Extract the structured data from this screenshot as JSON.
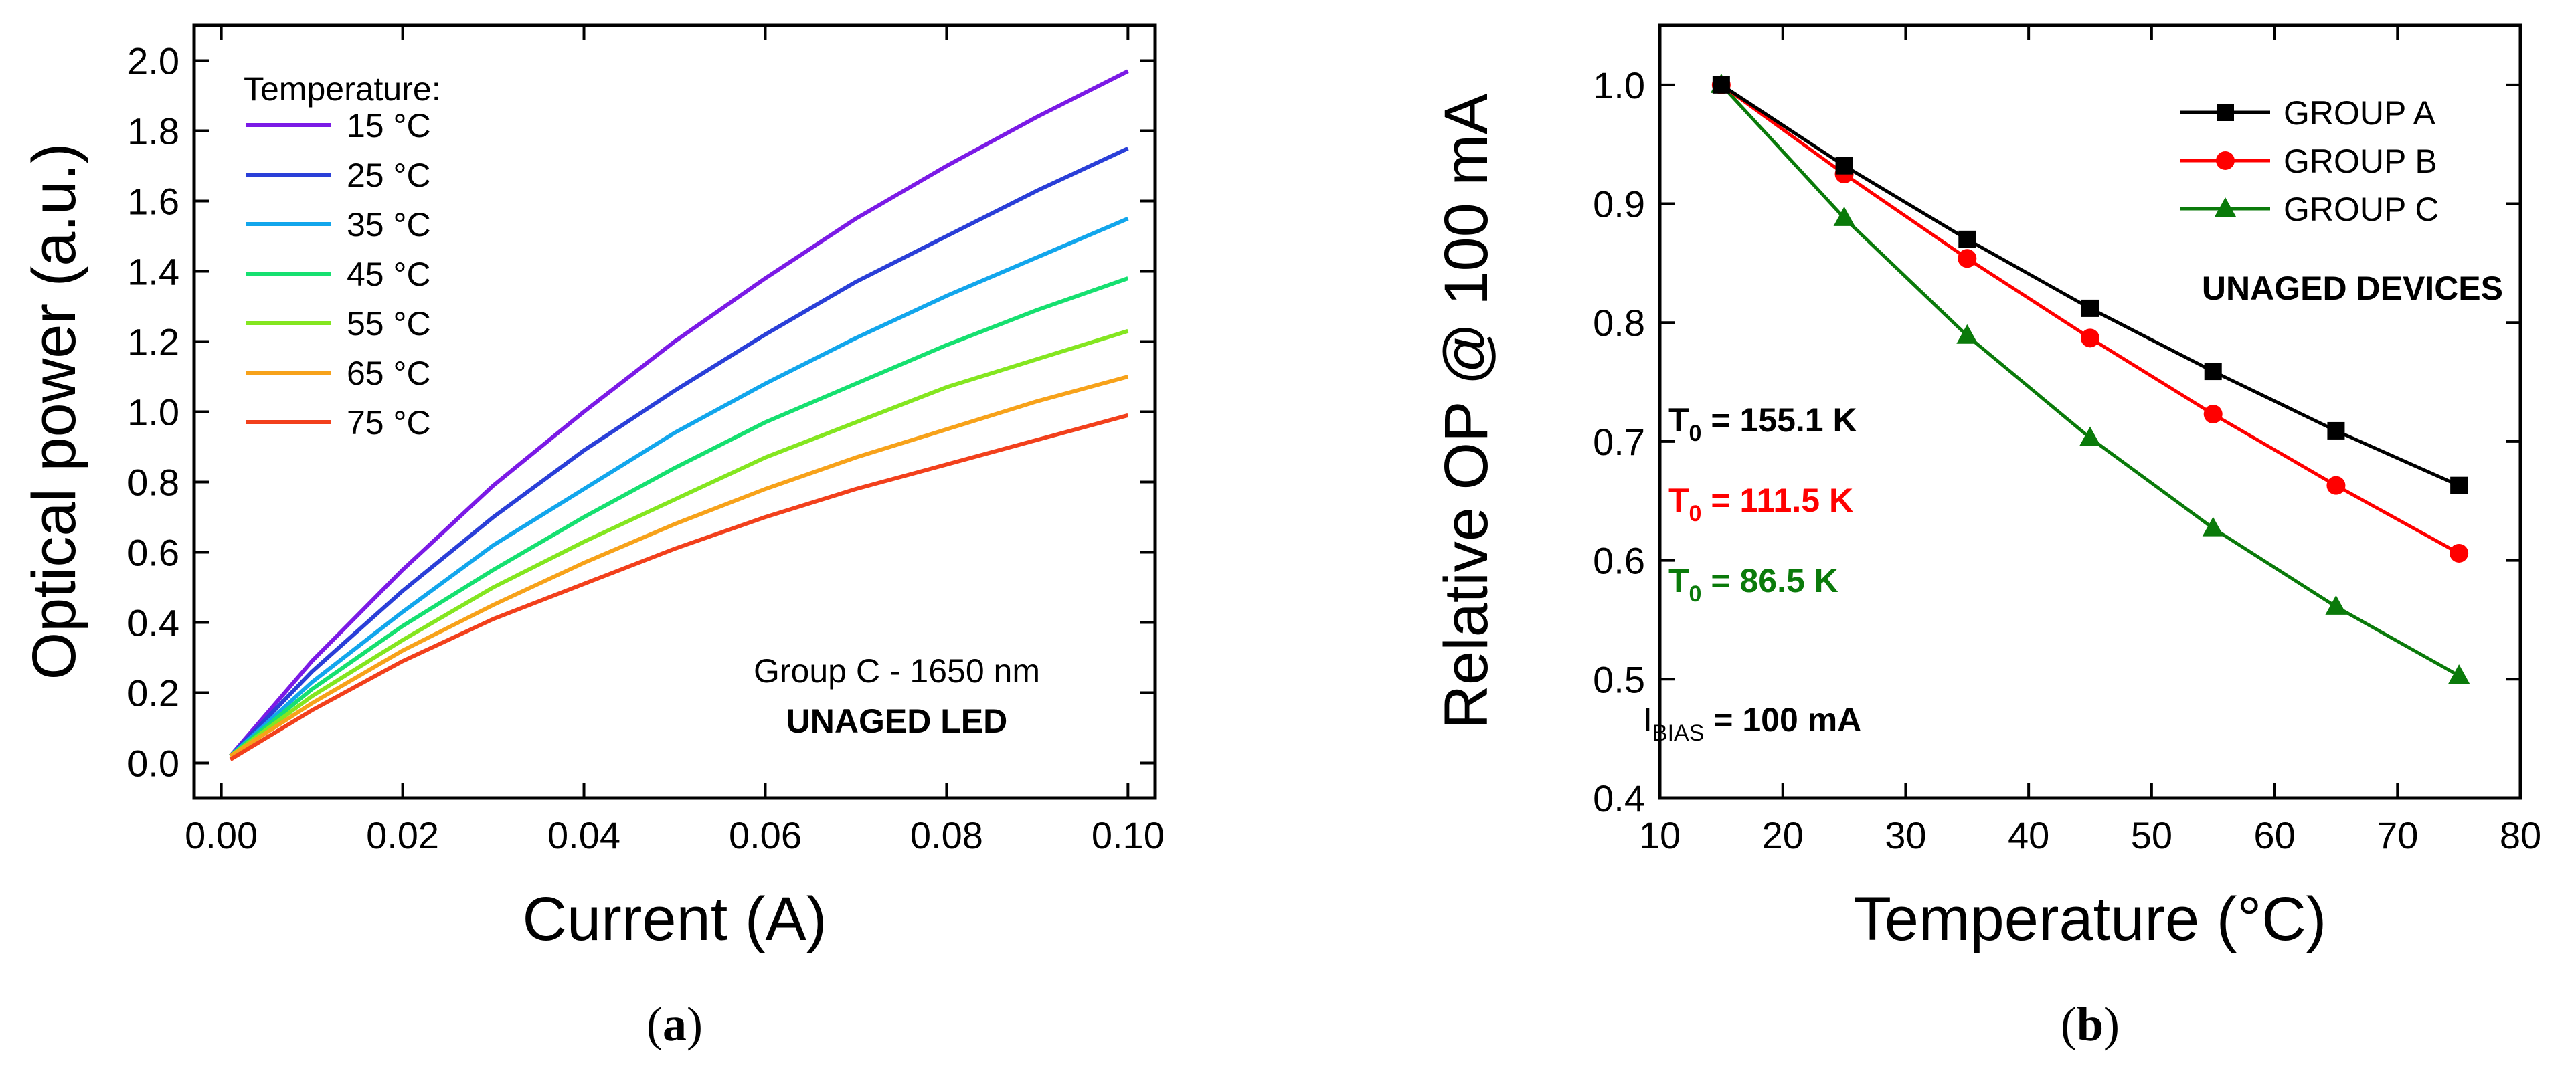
{
  "figure": {
    "panels": [
      {
        "label_open": "(",
        "label_letter": "a",
        "label_close": ")"
      },
      {
        "label_open": "(",
        "label_letter": "b",
        "label_close": ")"
      }
    ]
  },
  "chart_data": [
    {
      "type": "line",
      "id": "panel-a",
      "xlabel": "Current (A)",
      "ylabel": "Optical power (a.u.)",
      "xlim": [
        -0.003,
        0.103
      ],
      "ylim": [
        -0.1,
        2.1
      ],
      "xticks": [
        0.0,
        0.02,
        0.04,
        0.06,
        0.08,
        0.1
      ],
      "xtick_labels": [
        "0.00",
        "0.02",
        "0.04",
        "0.06",
        "0.08",
        "0.10"
      ],
      "yticks": [
        0.0,
        0.2,
        0.4,
        0.6,
        0.8,
        1.0,
        1.2,
        1.4,
        1.6,
        1.8,
        2.0
      ],
      "ytick_labels": [
        "0.0",
        "0.2",
        "0.4",
        "0.6",
        "0.8",
        "1.0",
        "1.2",
        "1.4",
        "1.6",
        "1.8",
        "2.0"
      ],
      "legend_title": "Temperature:",
      "annotations": {
        "line1": "Group  C - 1650 nm",
        "line2": "UNAGED LED"
      },
      "x": [
        0.001,
        0.01,
        0.02,
        0.03,
        0.04,
        0.05,
        0.06,
        0.07,
        0.08,
        0.09,
        0.1
      ],
      "series": [
        {
          "name": "15 °C",
          "color": "#7b1ae6",
          "values": [
            0.02,
            0.29,
            0.55,
            0.79,
            1.0,
            1.2,
            1.38,
            1.55,
            1.7,
            1.84,
            1.97
          ]
        },
        {
          "name": "25 °C",
          "color": "#2a3fd8",
          "values": [
            0.02,
            0.26,
            0.49,
            0.7,
            0.89,
            1.06,
            1.22,
            1.37,
            1.5,
            1.63,
            1.75
          ]
        },
        {
          "name": "35 °C",
          "color": "#12a6ec",
          "values": [
            0.02,
            0.23,
            0.43,
            0.62,
            0.78,
            0.94,
            1.08,
            1.21,
            1.33,
            1.44,
            1.55
          ]
        },
        {
          "name": "45 °C",
          "color": "#16e070",
          "values": [
            0.02,
            0.21,
            0.39,
            0.55,
            0.7,
            0.84,
            0.97,
            1.08,
            1.19,
            1.29,
            1.38
          ]
        },
        {
          "name": "55 °C",
          "color": "#84e620",
          "values": [
            0.02,
            0.19,
            0.35,
            0.5,
            0.63,
            0.75,
            0.87,
            0.97,
            1.07,
            1.15,
            1.23
          ]
        },
        {
          "name": "65 °C",
          "color": "#f7a21a",
          "values": [
            0.02,
            0.17,
            0.32,
            0.45,
            0.57,
            0.68,
            0.78,
            0.87,
            0.95,
            1.03,
            1.1
          ]
        },
        {
          "name": "75 °C",
          "color": "#f2401c",
          "values": [
            0.01,
            0.15,
            0.29,
            0.41,
            0.51,
            0.61,
            0.7,
            0.78,
            0.85,
            0.92,
            0.99
          ]
        }
      ]
    },
    {
      "type": "line",
      "id": "panel-b",
      "xlabel": "Temperature (°C)",
      "ylabel": "Relative OP @ 100 mA",
      "xlim": [
        10,
        80
      ],
      "ylim": [
        0.4,
        1.05
      ],
      "xticks": [
        10,
        20,
        30,
        40,
        50,
        60,
        70,
        80
      ],
      "xtick_labels": [
        "10",
        "20",
        "30",
        "40",
        "50",
        "60",
        "70",
        "80"
      ],
      "yticks": [
        0.4,
        0.5,
        0.6,
        0.7,
        0.8,
        0.9,
        1.0
      ],
      "ytick_labels": [
        "0.4",
        "0.5",
        "0.6",
        "0.7",
        "0.8",
        "0.9",
        "1.0"
      ],
      "x": [
        15,
        25,
        35,
        45,
        55,
        65,
        75
      ],
      "annotations": {
        "unaged": "UNAGED DEVICES",
        "t0_a": {
          "main": "T",
          "sub": "0",
          "value": " = 155.1 K",
          "color": "#000000"
        },
        "t0_b": {
          "main": "T",
          "sub": "0",
          "value": " = 111.5 K",
          "color": "#ff0000"
        },
        "t0_c": {
          "main": "T",
          "sub": "0",
          "value": " = 86.5 K",
          "color": "#0a7a0a"
        },
        "ibias": {
          "main": "I",
          "sub": "BIAS",
          "value": "  = 100 mA"
        }
      },
      "series": [
        {
          "name": "GROUP A",
          "color": "#000000",
          "marker": "square",
          "values": [
            1.0,
            0.932,
            0.87,
            0.812,
            0.759,
            0.709,
            0.663
          ]
        },
        {
          "name": "GROUP B",
          "color": "#ff0000",
          "marker": "circle",
          "values": [
            1.0,
            0.925,
            0.854,
            0.787,
            0.723,
            0.663,
            0.606
          ]
        },
        {
          "name": "GROUP C",
          "color": "#0a7a0a",
          "marker": "triangle",
          "values": [
            1.0,
            0.888,
            0.789,
            0.703,
            0.627,
            0.561,
            0.503
          ]
        }
      ]
    }
  ]
}
